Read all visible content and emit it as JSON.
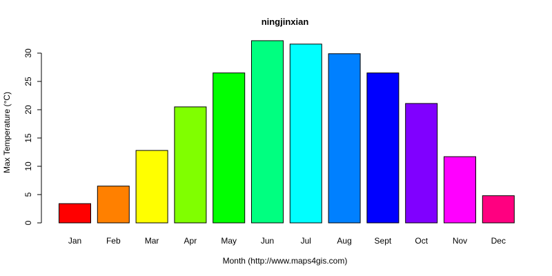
{
  "chart_data": {
    "type": "bar",
    "title": "ningjinxian",
    "xlabel": "Month (http://www.maps4gis.com)",
    "ylabel": "Max Temperature (°C)",
    "categories": [
      "Jan",
      "Feb",
      "Mar",
      "Apr",
      "May",
      "Jun",
      "Jul",
      "Aug",
      "Sept",
      "Oct",
      "Nov",
      "Dec"
    ],
    "values": [
      3.4,
      6.5,
      12.8,
      20.5,
      26.5,
      32.2,
      31.6,
      29.9,
      26.5,
      21.1,
      11.7,
      4.8
    ],
    "colors": [
      "#FF0000",
      "#FF8000",
      "#FFFF00",
      "#80FF00",
      "#00FF00",
      "#00FF80",
      "#00FFFF",
      "#0080FF",
      "#0000FF",
      "#8000FF",
      "#FF00FF",
      "#FF0080"
    ],
    "y_ticks": [
      0,
      5,
      10,
      15,
      20,
      25,
      30
    ],
    "ylim": [
      0,
      32.2
    ],
    "grid": false,
    "legend": "none"
  }
}
